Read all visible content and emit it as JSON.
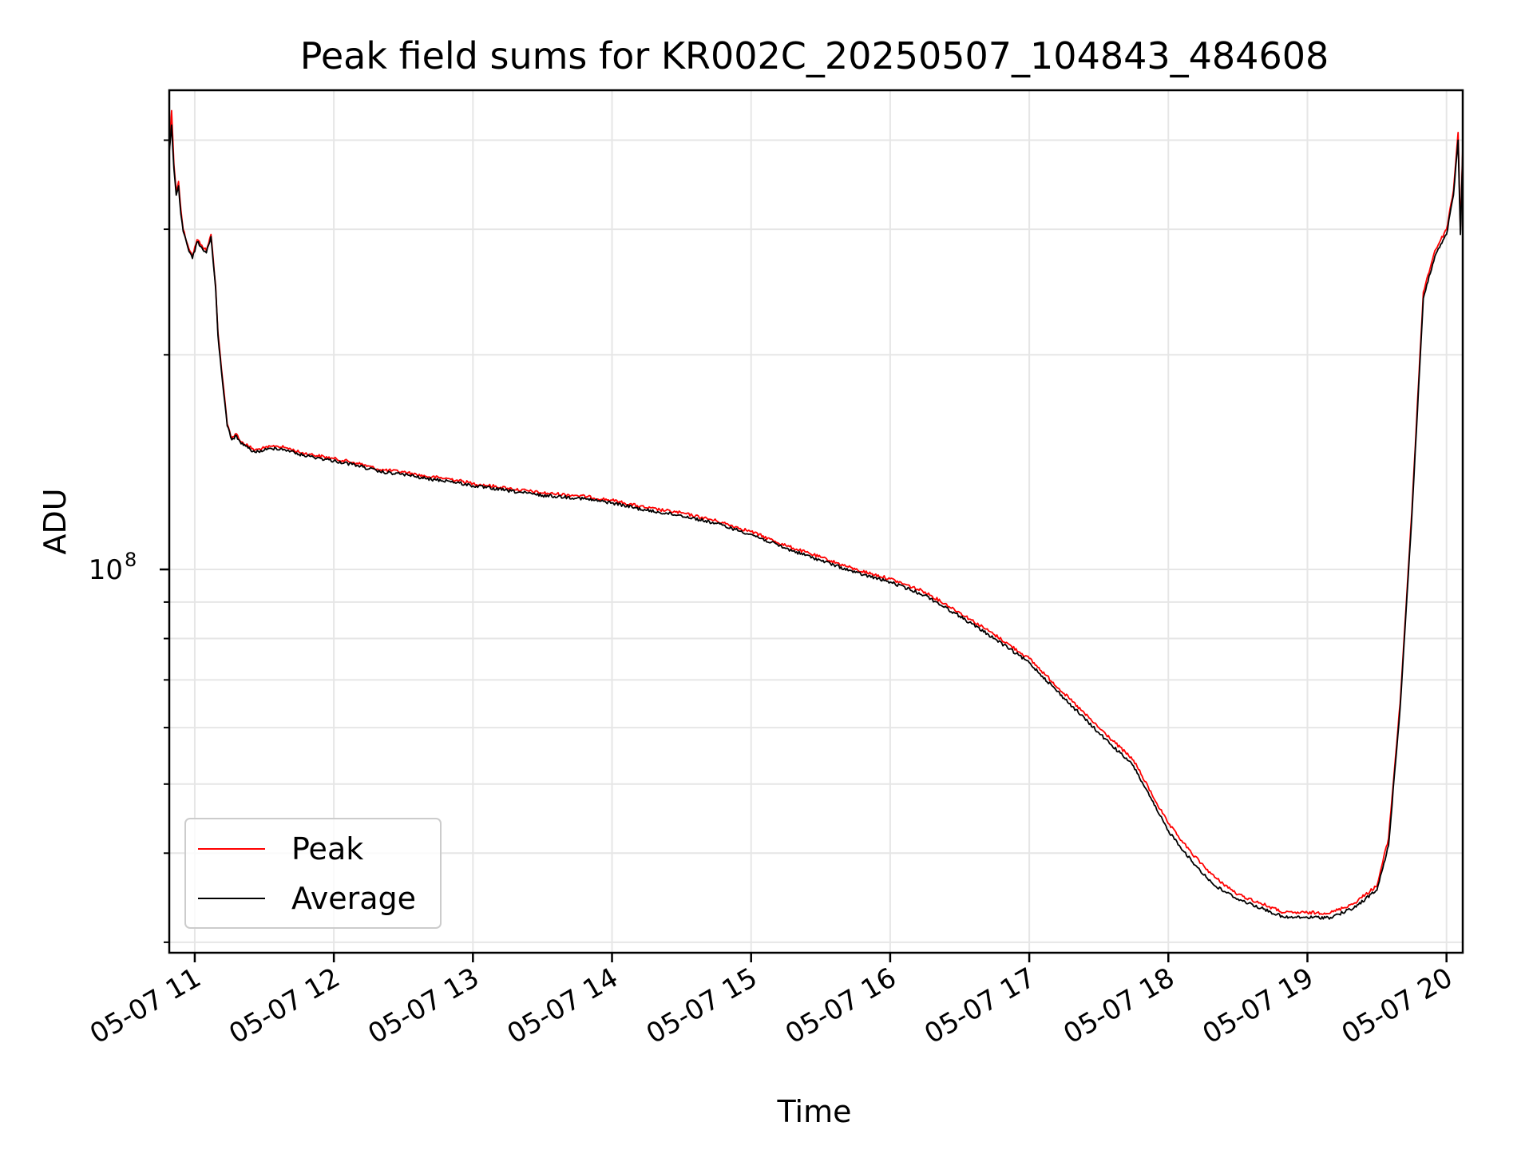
{
  "chart_data": {
    "type": "line",
    "title": "Peak field sums for KR002C_20250507_104843_484608",
    "xlabel": "Time",
    "ylabel": "ADU",
    "x_axis": {
      "type": "time",
      "range": [
        "2025-05-07 10:49",
        "2025-05-07 20:07"
      ],
      "tick_labels": [
        "05-07 11",
        "05-07 12",
        "05-07 13",
        "05-07 14",
        "05-07 15",
        "05-07 16",
        "05-07 17",
        "05-07 18",
        "05-07 19",
        "05-07 20"
      ],
      "tick_times": [
        "11:00",
        "12:00",
        "13:00",
        "14:00",
        "15:00",
        "16:00",
        "17:00",
        "18:00",
        "19:00",
        "20:00"
      ]
    },
    "y_axis": {
      "scale": "log",
      "range": [
        29000000,
        470000000
      ],
      "major_ticks": [
        100000000
      ],
      "major_tick_labels": [
        {
          "base": "10",
          "exponent": "8"
        }
      ],
      "minor_ticks": [
        30000000,
        40000000,
        50000000,
        60000000,
        70000000,
        80000000,
        90000000,
        200000000,
        300000000,
        400000000
      ]
    },
    "grid": true,
    "legend_position": "lower-left",
    "series": [
      {
        "name": "Peak",
        "color": "#ff0000",
        "x": [
          "10:49",
          "10:50",
          "10:51",
          "10:52",
          "10:53",
          "10:54",
          "10:55",
          "10:57",
          "10:59",
          "11:01",
          "11:03",
          "11:05",
          "11:07",
          "11:09",
          "11:10",
          "11:12",
          "11:14",
          "11:16",
          "11:18",
          "11:20",
          "11:23",
          "11:26",
          "11:30",
          "11:35",
          "11:40",
          "11:45",
          "11:50",
          "12:00",
          "12:10",
          "12:20",
          "12:30",
          "12:40",
          "12:50",
          "13:00",
          "13:15",
          "13:30",
          "13:45",
          "14:00",
          "14:15",
          "14:30",
          "14:45",
          "15:00",
          "15:15",
          "15:30",
          "15:45",
          "16:00",
          "16:15",
          "16:30",
          "16:45",
          "17:00",
          "17:15",
          "17:30",
          "17:45",
          "17:55",
          "18:00",
          "18:10",
          "18:20",
          "18:30",
          "18:40",
          "18:50",
          "19:00",
          "19:10",
          "19:20",
          "19:25",
          "19:30",
          "19:35",
          "19:40",
          "19:45",
          "19:50",
          "19:55",
          "20:00",
          "20:03",
          "20:05",
          "20:06",
          "20:07"
        ],
        "y": [
          390000000,
          440000000,
          370000000,
          340000000,
          350000000,
          320000000,
          300000000,
          285000000,
          275000000,
          290000000,
          285000000,
          280000000,
          295000000,
          250000000,
          215000000,
          185000000,
          160000000,
          153000000,
          155000000,
          151000000,
          149000000,
          147000000,
          148000000,
          149000000,
          148000000,
          146000000,
          145000000,
          143000000,
          141000000,
          138000000,
          137000000,
          135000000,
          134000000,
          132000000,
          130000000,
          128000000,
          127000000,
          125000000,
          122000000,
          120000000,
          117000000,
          113000000,
          108000000,
          104000000,
          100000000,
          97000000,
          93000000,
          87000000,
          81000000,
          75000000,
          67000000,
          60000000,
          54000000,
          47000000,
          44000000,
          40000000,
          37000000,
          35000000,
          34000000,
          33000000,
          33000000,
          33000000,
          34000000,
          35000000,
          36000000,
          42000000,
          65000000,
          120000000,
          245000000,
          280000000,
          300000000,
          340000000,
          410000000,
          300000000,
          390000000
        ]
      },
      {
        "name": "Average",
        "color": "#000000",
        "x": [
          "10:49",
          "10:50",
          "10:51",
          "10:52",
          "10:53",
          "10:54",
          "10:55",
          "10:57",
          "10:59",
          "11:01",
          "11:03",
          "11:05",
          "11:07",
          "11:09",
          "11:10",
          "11:12",
          "11:14",
          "11:16",
          "11:18",
          "11:20",
          "11:23",
          "11:26",
          "11:30",
          "11:35",
          "11:40",
          "11:45",
          "11:50",
          "12:00",
          "12:10",
          "12:20",
          "12:30",
          "12:40",
          "12:50",
          "13:00",
          "13:15",
          "13:30",
          "13:45",
          "14:00",
          "14:15",
          "14:30",
          "14:45",
          "15:00",
          "15:15",
          "15:30",
          "15:45",
          "16:00",
          "16:15",
          "16:30",
          "16:45",
          "17:00",
          "17:15",
          "17:30",
          "17:45",
          "17:55",
          "18:00",
          "18:10",
          "18:20",
          "18:30",
          "18:40",
          "18:50",
          "19:00",
          "19:10",
          "19:20",
          "19:25",
          "19:30",
          "19:35",
          "19:40",
          "19:45",
          "19:50",
          "19:55",
          "20:00",
          "20:03",
          "20:05",
          "20:06",
          "20:07"
        ],
        "y": [
          385000000,
          420000000,
          365000000,
          335000000,
          345000000,
          315000000,
          298000000,
          283000000,
          273000000,
          288000000,
          283000000,
          278000000,
          293000000,
          248000000,
          213000000,
          183000000,
          159000000,
          152000000,
          154000000,
          150000000,
          148000000,
          146000000,
          147000000,
          148000000,
          147000000,
          145000000,
          144000000,
          142000000,
          140000000,
          137000000,
          136000000,
          134000000,
          133000000,
          131000000,
          129000000,
          127000000,
          126000000,
          124000000,
          121000000,
          119000000,
          116000000,
          112000000,
          107000000,
          103000000,
          99000000,
          96000000,
          92000000,
          86000000,
          80000000,
          74000000,
          66000000,
          59000000,
          53000000,
          46000000,
          43000000,
          39000000,
          36000000,
          34500000,
          33500000,
          32500000,
          32500000,
          32500000,
          33500000,
          34500000,
          35500000,
          41000000,
          64000000,
          118000000,
          240000000,
          275000000,
          295000000,
          335000000,
          400000000,
          295000000,
          385000000
        ]
      }
    ]
  }
}
